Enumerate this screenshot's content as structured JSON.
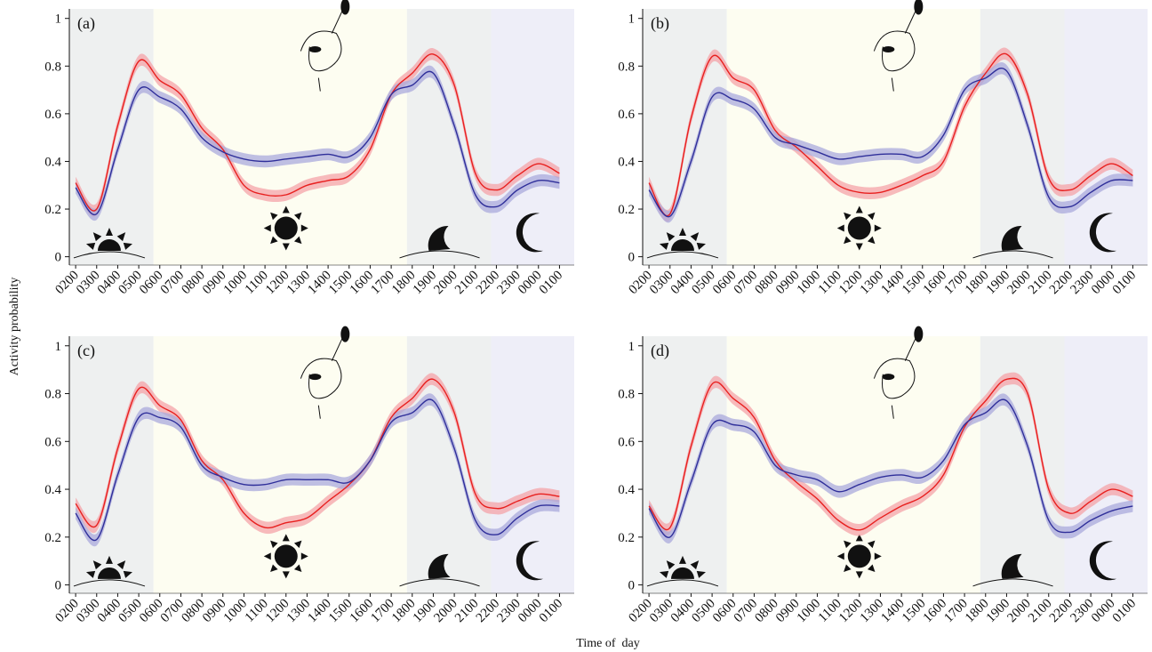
{
  "xlabel": "Time of  day",
  "ylabel": "Activity probability",
  "chart_data": [
    {
      "type": "line",
      "label": "(a)",
      "categories": [
        "0200",
        "0300",
        "0400",
        "0500",
        "0600",
        "0700",
        "0800",
        "0900",
        "1000",
        "1100",
        "1200",
        "1300",
        "1400",
        "1500",
        "1600",
        "1700",
        "1800",
        "1900",
        "2000",
        "2100",
        "2200",
        "2300",
        "0000",
        "0100"
      ],
      "series": [
        {
          "color": "#e8201f",
          "band_color": "#f4a3a8",
          "error": 0.025,
          "values": [
            0.31,
            0.2,
            0.55,
            0.82,
            0.74,
            0.68,
            0.54,
            0.45,
            0.3,
            0.26,
            0.26,
            0.3,
            0.32,
            0.34,
            0.45,
            0.68,
            0.77,
            0.85,
            0.72,
            0.35,
            0.28,
            0.34,
            0.39,
            0.35
          ]
        },
        {
          "color": "#2f2f9a",
          "band_color": "#a9a9dc",
          "error": 0.025,
          "values": [
            0.29,
            0.18,
            0.45,
            0.7,
            0.67,
            0.62,
            0.5,
            0.44,
            0.41,
            0.4,
            0.41,
            0.42,
            0.43,
            0.42,
            0.5,
            0.68,
            0.72,
            0.77,
            0.55,
            0.26,
            0.21,
            0.28,
            0.32,
            0.31
          ]
        }
      ],
      "ylim": [
        -0.035,
        1.04
      ],
      "yticks": [
        0,
        0.2,
        0.4,
        0.6,
        0.8,
        1
      ],
      "shading": [
        {
          "from": -0.3,
          "to": 3.7,
          "color": "#eef0f0"
        },
        {
          "from": 3.7,
          "to": 15.75,
          "color": "#fdfdf1"
        },
        {
          "from": 15.75,
          "to": 19.75,
          "color": "#eef0f0"
        },
        {
          "from": 19.75,
          "to": 23.7,
          "color": "#eeeef8"
        }
      ]
    },
    {
      "type": "line",
      "label": "(b)",
      "categories": [
        "0200",
        "0300",
        "0400",
        "0500",
        "0600",
        "0700",
        "0800",
        "0900",
        "1000",
        "1100",
        "1200",
        "1300",
        "1400",
        "1500",
        "1600",
        "1700",
        "1800",
        "1900",
        "2000",
        "2100",
        "2200",
        "2300",
        "0000",
        "0100"
      ],
      "series": [
        {
          "color": "#e8201f",
          "band_color": "#f4a3a8",
          "error": 0.025,
          "values": [
            0.31,
            0.18,
            0.58,
            0.84,
            0.75,
            0.7,
            0.53,
            0.46,
            0.38,
            0.3,
            0.27,
            0.27,
            0.3,
            0.34,
            0.4,
            0.63,
            0.77,
            0.85,
            0.68,
            0.33,
            0.28,
            0.34,
            0.39,
            0.34
          ]
        },
        {
          "color": "#2f2f9a",
          "band_color": "#a9a9dc",
          "error": 0.025,
          "values": [
            0.28,
            0.17,
            0.4,
            0.67,
            0.66,
            0.62,
            0.5,
            0.47,
            0.44,
            0.41,
            0.42,
            0.43,
            0.43,
            0.42,
            0.51,
            0.7,
            0.75,
            0.78,
            0.55,
            0.25,
            0.21,
            0.27,
            0.32,
            0.32
          ]
        }
      ],
      "ylim": [
        -0.035,
        1.04
      ],
      "yticks": [
        0,
        0.2,
        0.4,
        0.6,
        0.8,
        1
      ],
      "shading": [
        {
          "from": -0.3,
          "to": 3.7,
          "color": "#eef0f0"
        },
        {
          "from": 3.7,
          "to": 15.75,
          "color": "#fdfdf1"
        },
        {
          "from": 15.75,
          "to": 19.75,
          "color": "#eef0f0"
        },
        {
          "from": 19.75,
          "to": 23.7,
          "color": "#eeeef8"
        }
      ]
    },
    {
      "type": "line",
      "label": "(c)",
      "categories": [
        "0200",
        "0300",
        "0400",
        "0500",
        "0600",
        "0700",
        "0800",
        "0900",
        "1000",
        "1100",
        "1200",
        "1300",
        "1400",
        "1500",
        "1600",
        "1700",
        "1800",
        "1900",
        "2000",
        "2100",
        "2200",
        "2300",
        "0000",
        "0100"
      ],
      "series": [
        {
          "color": "#e8201f",
          "band_color": "#f4a3a8",
          "error": 0.025,
          "values": [
            0.34,
            0.25,
            0.57,
            0.82,
            0.75,
            0.69,
            0.52,
            0.44,
            0.3,
            0.24,
            0.26,
            0.28,
            0.35,
            0.42,
            0.52,
            0.7,
            0.78,
            0.86,
            0.72,
            0.38,
            0.32,
            0.35,
            0.38,
            0.37
          ]
        },
        {
          "color": "#2f2f9a",
          "band_color": "#a9a9dc",
          "error": 0.025,
          "values": [
            0.3,
            0.19,
            0.46,
            0.7,
            0.7,
            0.66,
            0.5,
            0.45,
            0.42,
            0.42,
            0.44,
            0.44,
            0.44,
            0.43,
            0.52,
            0.68,
            0.72,
            0.77,
            0.57,
            0.27,
            0.21,
            0.28,
            0.33,
            0.33
          ]
        }
      ],
      "ylim": [
        -0.035,
        1.04
      ],
      "yticks": [
        0,
        0.2,
        0.4,
        0.6,
        0.8,
        1
      ],
      "shading": [
        {
          "from": -0.3,
          "to": 3.7,
          "color": "#eef0f0"
        },
        {
          "from": 3.7,
          "to": 15.75,
          "color": "#fdfdf1"
        },
        {
          "from": 15.75,
          "to": 19.75,
          "color": "#eef0f0"
        },
        {
          "from": 19.75,
          "to": 23.7,
          "color": "#eeeef8"
        }
      ]
    },
    {
      "type": "line",
      "label": "(d)",
      "categories": [
        "0200",
        "0300",
        "0400",
        "0500",
        "0600",
        "0700",
        "0800",
        "0900",
        "1000",
        "1100",
        "1200",
        "1300",
        "1400",
        "1500",
        "1600",
        "1700",
        "1800",
        "1900",
        "2000",
        "2100",
        "2200",
        "2300",
        "0000",
        "0100"
      ],
      "series": [
        {
          "color": "#e8201f",
          "band_color": "#f4a3a8",
          "error": 0.025,
          "values": [
            0.33,
            0.24,
            0.58,
            0.84,
            0.78,
            0.7,
            0.52,
            0.43,
            0.36,
            0.27,
            0.23,
            0.28,
            0.33,
            0.37,
            0.46,
            0.66,
            0.77,
            0.86,
            0.8,
            0.4,
            0.3,
            0.35,
            0.4,
            0.37
          ]
        },
        {
          "color": "#2f2f9a",
          "band_color": "#a9a9dc",
          "error": 0.025,
          "values": [
            0.32,
            0.2,
            0.43,
            0.67,
            0.67,
            0.64,
            0.5,
            0.46,
            0.44,
            0.39,
            0.42,
            0.45,
            0.46,
            0.45,
            0.52,
            0.67,
            0.72,
            0.77,
            0.58,
            0.27,
            0.22,
            0.27,
            0.31,
            0.33
          ]
        }
      ],
      "ylim": [
        -0.035,
        1.04
      ],
      "yticks": [
        0,
        0.2,
        0.4,
        0.6,
        0.8,
        1
      ],
      "shading": [
        {
          "from": -0.3,
          "to": 3.7,
          "color": "#eef0f0"
        },
        {
          "from": 3.7,
          "to": 15.75,
          "color": "#fdfdf1"
        },
        {
          "from": 15.75,
          "to": 19.75,
          "color": "#eef0f0"
        },
        {
          "from": 19.75,
          "to": 23.7,
          "color": "#eeeef8"
        }
      ]
    }
  ]
}
